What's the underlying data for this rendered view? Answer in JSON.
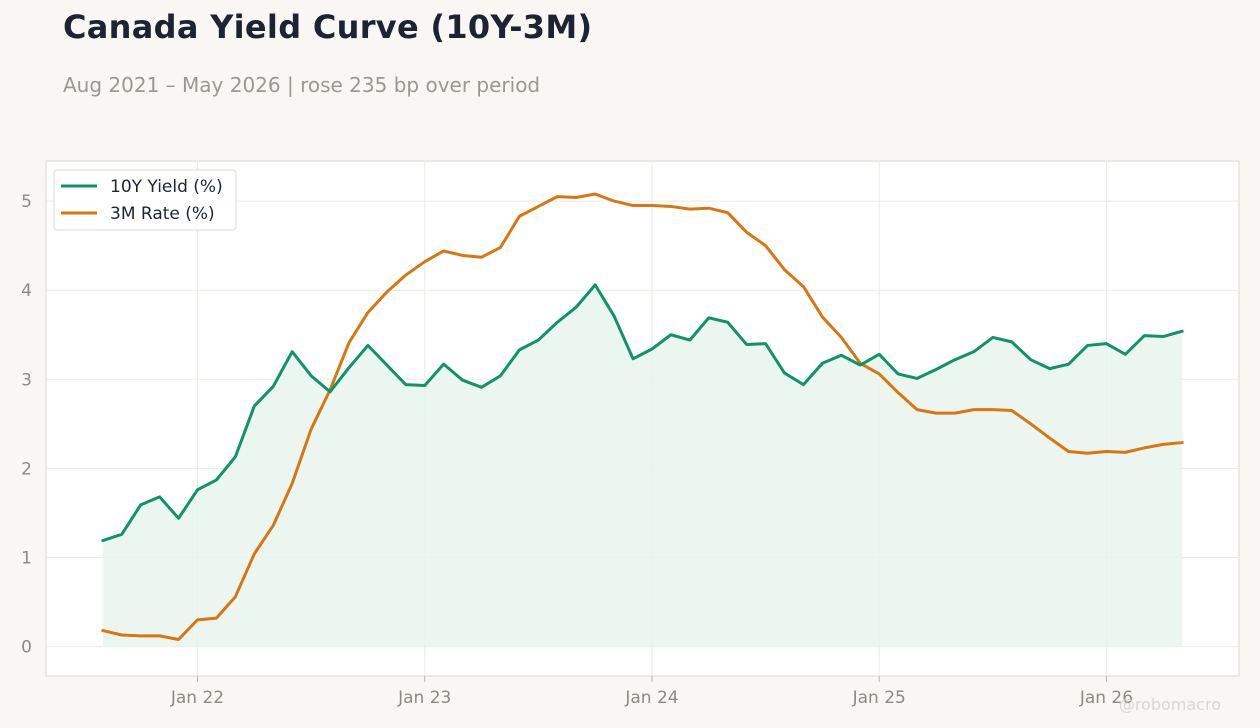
{
  "title": "Canada Yield Curve (10Y-3M)",
  "subtitle": "Aug 2021 – May 2026 | rose 235 bp over period",
  "watermark": "@robomacro",
  "colors": {
    "ten_year": "#0e936a",
    "three_month": "#d9760f",
    "fill": "#e8f4ef"
  },
  "chart_data": {
    "type": "line",
    "x": [
      "2021-08",
      "2021-09",
      "2021-10",
      "2021-11",
      "2021-12",
      "2022-01",
      "2022-02",
      "2022-03",
      "2022-04",
      "2022-05",
      "2022-06",
      "2022-07",
      "2022-08",
      "2022-09",
      "2022-10",
      "2022-11",
      "2022-12",
      "2023-01",
      "2023-02",
      "2023-03",
      "2023-04",
      "2023-05",
      "2023-06",
      "2023-07",
      "2023-08",
      "2023-09",
      "2023-10",
      "2023-11",
      "2023-12",
      "2024-01",
      "2024-02",
      "2024-03",
      "2024-04",
      "2024-05",
      "2024-06",
      "2024-07",
      "2024-08",
      "2024-09",
      "2024-10",
      "2024-11",
      "2024-12",
      "2025-01",
      "2025-02",
      "2025-03",
      "2025-04",
      "2025-05",
      "2025-06",
      "2025-07",
      "2025-08",
      "2025-09",
      "2025-10",
      "2025-11",
      "2025-12",
      "2026-01",
      "2026-02",
      "2026-03",
      "2026-04",
      "2026-05"
    ],
    "series": [
      {
        "name": "10Y Yield (%)",
        "values": [
          1.19,
          1.26,
          1.59,
          1.68,
          1.44,
          1.76,
          1.87,
          2.13,
          2.7,
          2.92,
          3.31,
          3.04,
          2.86,
          3.13,
          3.38,
          3.16,
          2.94,
          2.93,
          3.17,
          2.99,
          2.91,
          3.04,
          3.33,
          3.44,
          3.64,
          3.81,
          4.06,
          3.71,
          3.23,
          3.34,
          3.5,
          3.44,
          3.69,
          3.64,
          3.39,
          3.4,
          3.07,
          2.94,
          3.18,
          3.27,
          3.16,
          3.28,
          3.06,
          3.01,
          3.11,
          3.22,
          3.31,
          3.47,
          3.42,
          3.22,
          3.12,
          3.17,
          3.38,
          3.4,
          3.28,
          3.49,
          3.48,
          3.54
        ]
      },
      {
        "name": "3M Rate (%)",
        "values": [
          0.18,
          0.13,
          0.12,
          0.12,
          0.08,
          0.3,
          0.32,
          0.56,
          1.04,
          1.36,
          1.83,
          2.44,
          2.88,
          3.41,
          3.75,
          3.98,
          4.17,
          4.32,
          4.44,
          4.39,
          4.37,
          4.48,
          4.83,
          4.94,
          5.05,
          5.04,
          5.08,
          5.0,
          4.95,
          4.95,
          4.94,
          4.91,
          4.92,
          4.87,
          4.65,
          4.5,
          4.23,
          4.04,
          3.7,
          3.47,
          3.18,
          3.06,
          2.85,
          2.66,
          2.62,
          2.62,
          2.66,
          2.66,
          2.65,
          2.5,
          2.34,
          2.19,
          2.17,
          2.19,
          2.18,
          2.23,
          2.27,
          2.29
        ]
      }
    ],
    "x_ticks": [
      "Jan 22",
      "Jan 23",
      "Jan 24",
      "Jan 25",
      "Jan 26"
    ],
    "y_ticks": [
      0,
      1,
      2,
      3,
      4,
      5
    ],
    "ylim": [
      -0.33,
      5.45
    ],
    "xlim": [
      "2021-05",
      "2026-08"
    ],
    "grid": true,
    "legend": "top-left",
    "fill_under": "10Y Yield (%)"
  }
}
